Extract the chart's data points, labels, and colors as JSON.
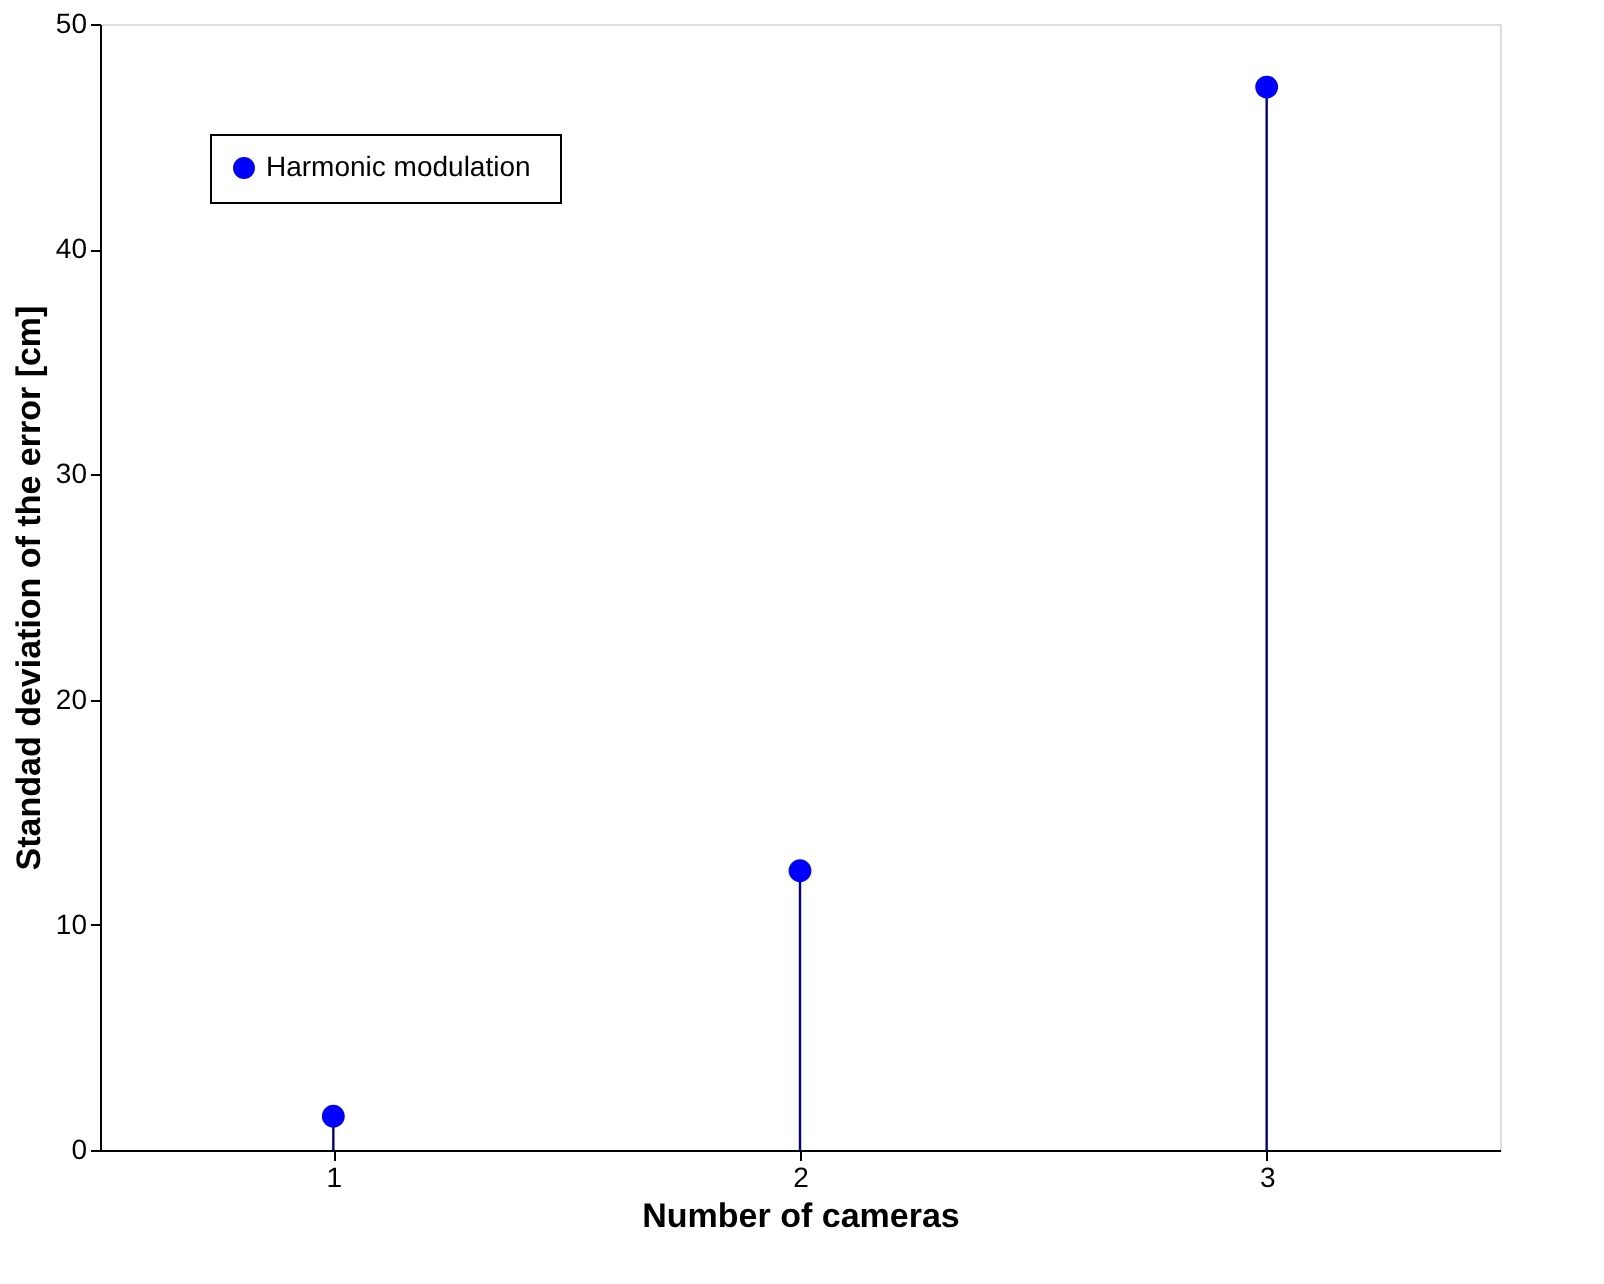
{
  "chart_data": {
    "type": "lollipop",
    "xlabel": "Number of cameras",
    "ylabel": "Standad deviation of the  error [cm]",
    "x": [
      1,
      2,
      3
    ],
    "series": [
      {
        "name": "Harmonic  modulation",
        "color": "#0000ff",
        "values": [
          1.5,
          12.4,
          47.2
        ]
      }
    ],
    "xlim": [
      0.5,
      3.5
    ],
    "xticks": [
      1,
      2,
      3
    ],
    "ylim": [
      0,
      50
    ],
    "yticks": [
      0,
      10,
      20,
      30,
      40,
      50
    ],
    "grid": false,
    "legend": "top left",
    "marker": "circle"
  }
}
